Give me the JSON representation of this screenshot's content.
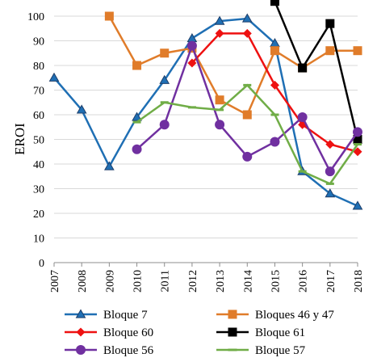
{
  "chart_data": {
    "type": "line",
    "ylabel": "EROI",
    "xlabel": "",
    "ylim": [
      0,
      100
    ],
    "yticks": [
      0,
      10,
      20,
      30,
      40,
      50,
      60,
      70,
      80,
      90,
      100
    ],
    "categories": [
      "2007",
      "2008",
      "2009",
      "2010",
      "2011",
      "2012",
      "2013",
      "2014",
      "2015",
      "2016",
      "2017",
      "2018"
    ],
    "grid": true,
    "legend_position": "bottom",
    "series": [
      {
        "name": "Bloque 7",
        "color": "#1f6fb4",
        "marker": "triangle",
        "values": [
          75,
          62,
          39,
          59,
          74,
          91,
          98,
          99,
          89,
          37,
          28,
          23
        ]
      },
      {
        "name": "Bloques 46 y 47",
        "color": "#e07c2a",
        "marker": "square",
        "values": [
          null,
          null,
          100,
          80,
          85,
          87,
          66,
          60,
          86,
          79,
          86,
          86
        ]
      },
      {
        "name": "Bloque 60",
        "color": "#ee1111",
        "marker": "diamond",
        "values": [
          null,
          null,
          null,
          null,
          null,
          81,
          93,
          93,
          72,
          56,
          48,
          45
        ]
      },
      {
        "name": "Bloque 61",
        "color": "#000000",
        "marker": "square",
        "values": [
          null,
          null,
          null,
          null,
          null,
          null,
          null,
          null,
          106,
          79,
          97,
          50
        ]
      },
      {
        "name": "Bloque 56",
        "color": "#7030a0",
        "marker": "circle",
        "values": [
          null,
          null,
          null,
          46,
          56,
          88,
          56,
          43,
          49,
          59,
          37,
          53
        ]
      },
      {
        "name": "Bloque 57",
        "color": "#70ad47",
        "marker": "dash",
        "values": [
          null,
          null,
          null,
          57,
          65,
          63,
          62,
          72,
          60,
          37,
          32,
          48
        ]
      }
    ]
  }
}
